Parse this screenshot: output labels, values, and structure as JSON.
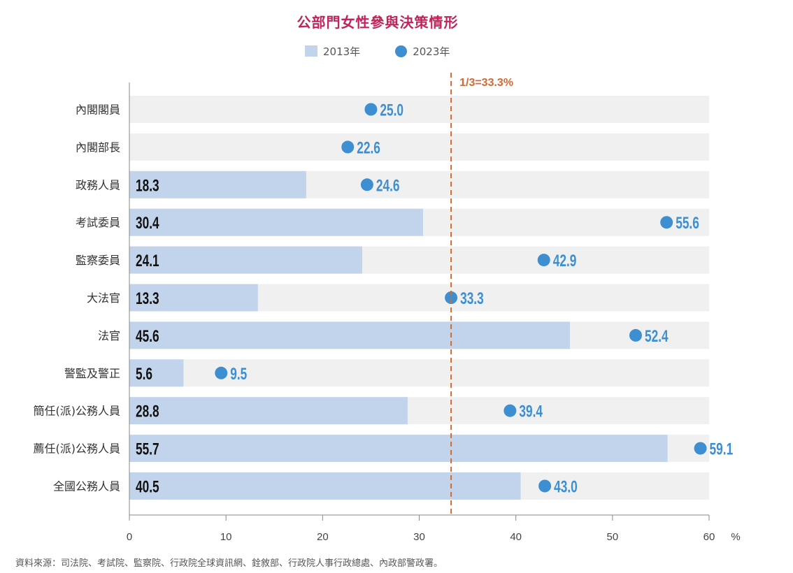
{
  "chart_data": {
    "type": "bar",
    "title": "公部門女性參與決策情形",
    "categories": [
      "內閣閣員",
      "內閣部長",
      "政務人員",
      "考試委員",
      "監察委員",
      "大法官",
      "法官",
      "警監及警正",
      "簡任(派)公務人員",
      "薦任(派)公務人員",
      "全國公務人員"
    ],
    "series": [
      {
        "name": "2013年",
        "style": "bar",
        "values": [
          null,
          null,
          18.3,
          30.4,
          24.1,
          13.3,
          45.6,
          5.6,
          28.8,
          55.7,
          40.5
        ],
        "color": "#c2d4ec"
      },
      {
        "name": "2023年",
        "style": "dot",
        "values": [
          25.0,
          22.6,
          24.6,
          55.6,
          42.9,
          33.3,
          52.4,
          9.5,
          39.4,
          59.1,
          43.0
        ],
        "color": "#3d8fd1"
      }
    ],
    "reference_line": {
      "value": 33.3,
      "label": "1/3=33.3%",
      "color": "#d06a35"
    },
    "xlim": [
      0,
      60
    ],
    "xticks": [
      "0",
      "10",
      "20",
      "30",
      "40",
      "50",
      "60"
    ],
    "xunit": "%",
    "track_color": "#f0f0f0",
    "source": "資料來源：司法院、考試院、監察院、行政院全球資訊網、銓敘部、行政院人事行政總處、內政部警政署。"
  }
}
